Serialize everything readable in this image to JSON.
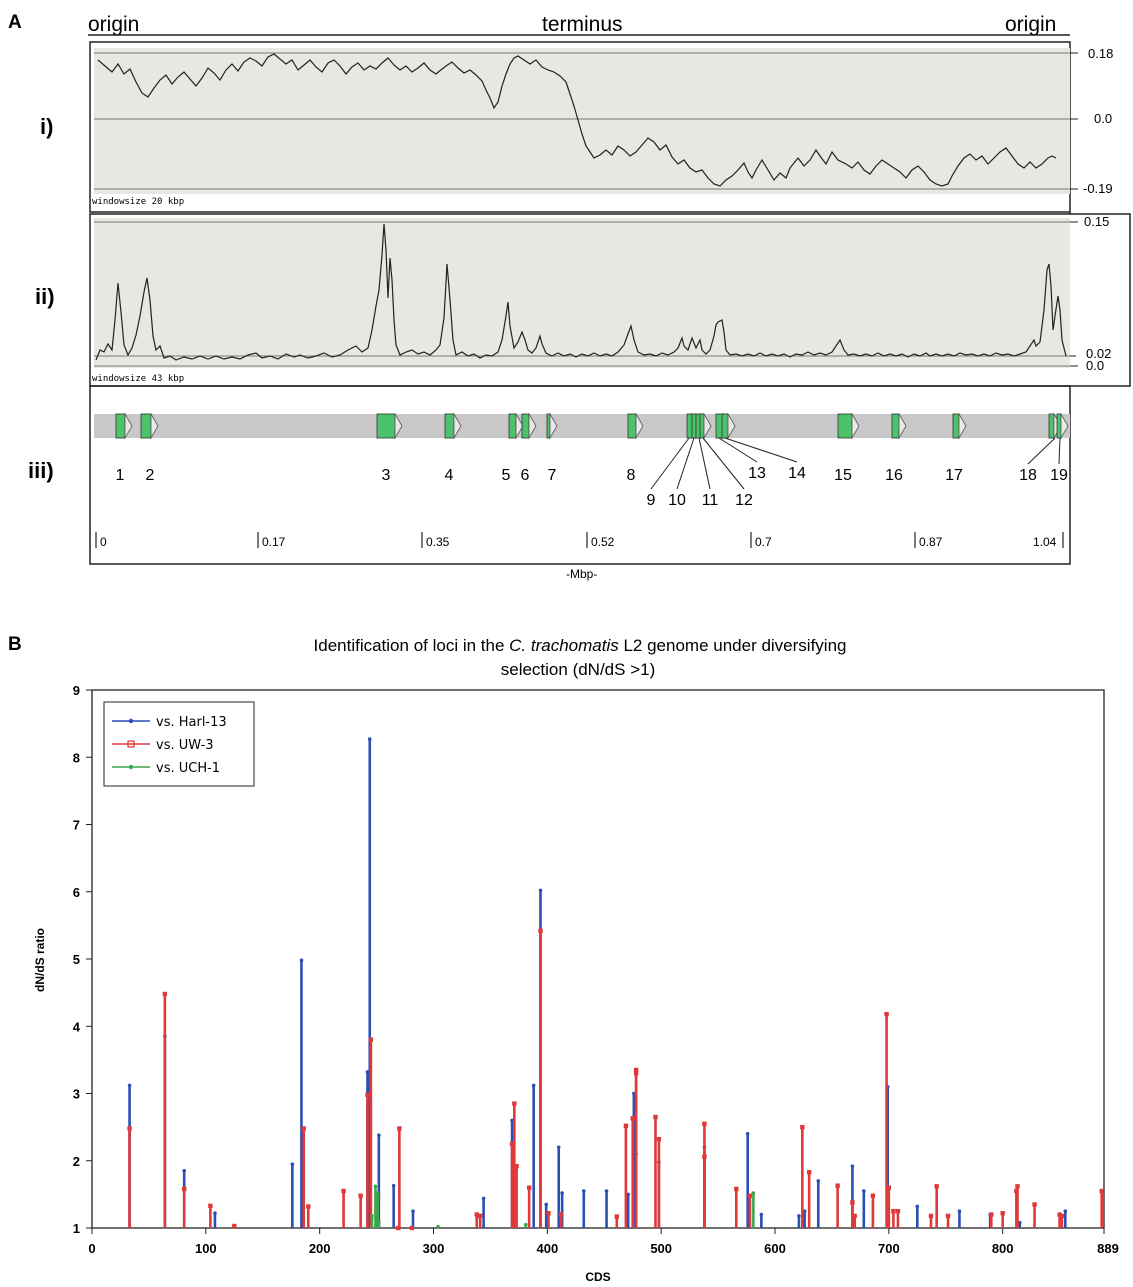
{
  "panel_a": {
    "letter": "A",
    "header": {
      "left": "origin",
      "center": "terminus",
      "right": "origin"
    },
    "row_labels": {
      "i": "i)",
      "ii": "ii)",
      "iii": "iii)"
    },
    "track_i": {
      "ticks": [
        "0.18",
        "0.0",
        "-0.19"
      ],
      "window_label": "windowsize 20 kbp"
    },
    "track_ii": {
      "ticks": [
        "0.15",
        "0.02",
        "0.0"
      ],
      "window_label": "windowsize 43 kbp"
    },
    "loci": [
      "1",
      "2",
      "3",
      "4",
      "5",
      "6",
      "7",
      "8",
      "9",
      "10",
      "11",
      "12",
      "13",
      "14",
      "15",
      "16",
      "17",
      "18",
      "19"
    ],
    "mbp_ticks": [
      "0",
      "0.17",
      "0.35",
      "0.52",
      "0.7",
      "0.87",
      "1.04"
    ],
    "mbp_label": "-Mbp-"
  },
  "panel_b": {
    "letter": "B",
    "title_line1_before": "Identification of loci in the ",
    "title_line1_italic": "C. trachomatis",
    "title_line1_after": " L2 genome under diversifying",
    "title_line2": "selection (dN/dS >1)"
  },
  "colors": {
    "hark13": "#2a4fb5",
    "uw3": "#e0393a",
    "uch1": "#3aa64a",
    "gene": "#4cc26a",
    "track_bg": "#e6e8e2"
  },
  "chart_data": {
    "type": "line",
    "xlabel": "CDS",
    "ylabel": "dN/dS ratio",
    "xlim": [
      0,
      889
    ],
    "ylim": [
      1,
      9
    ],
    "x_ticks": [
      "0",
      "100",
      "200",
      "300",
      "400",
      "500",
      "600",
      "700",
      "800",
      "889"
    ],
    "y_ticks": [
      "1",
      "2",
      "3",
      "4",
      "5",
      "6",
      "7",
      "8",
      "9"
    ],
    "legend_position": "top-left",
    "series": [
      {
        "name": "vs. Harl-13",
        "color": "#2a4fb5",
        "points": [
          [
            33,
            3.12
          ],
          [
            64,
            3.85
          ],
          [
            81,
            1.85
          ],
          [
            108,
            1.22
          ],
          [
            176,
            1.95
          ],
          [
            184,
            4.98
          ],
          [
            242,
            3.32
          ],
          [
            244,
            8.27
          ],
          [
            252,
            2.38
          ],
          [
            265,
            1.63
          ],
          [
            282,
            1.25
          ],
          [
            344,
            1.44
          ],
          [
            369,
            2.6
          ],
          [
            388,
            3.12
          ],
          [
            394,
            6.02
          ],
          [
            399,
            1.35
          ],
          [
            410,
            2.2
          ],
          [
            413,
            1.52
          ],
          [
            432,
            1.55
          ],
          [
            452,
            1.55
          ],
          [
            471,
            1.5
          ],
          [
            476,
            3.0
          ],
          [
            478,
            2.1
          ],
          [
            498,
            1.98
          ],
          [
            538,
            2.2
          ],
          [
            576,
            2.4
          ],
          [
            588,
            1.2
          ],
          [
            621,
            1.18
          ],
          [
            626,
            1.25
          ],
          [
            638,
            1.7
          ],
          [
            668,
            1.92
          ],
          [
            678,
            1.55
          ],
          [
            699,
            3.1
          ],
          [
            725,
            1.32
          ],
          [
            762,
            1.25
          ],
          [
            789,
            1.2
          ],
          [
            815,
            1.08
          ],
          [
            855,
            1.25
          ]
        ]
      },
      {
        "name": "vs. UW-3",
        "color": "#e0393a",
        "points": [
          [
            33,
            2.48
          ],
          [
            64,
            4.48
          ],
          [
            81,
            1.58
          ],
          [
            104,
            1.33
          ],
          [
            125,
            1.03
          ],
          [
            186,
            2.48
          ],
          [
            190,
            1.32
          ],
          [
            221,
            1.55
          ],
          [
            236,
            1.48
          ],
          [
            242,
            2.98
          ],
          [
            245,
            3.8
          ],
          [
            270,
            2.48
          ],
          [
            269,
            1.0
          ],
          [
            281,
            1.0
          ],
          [
            338,
            1.2
          ],
          [
            341,
            1.18
          ],
          [
            369,
            2.25
          ],
          [
            371,
            2.85
          ],
          [
            373,
            1.92
          ],
          [
            384,
            1.6
          ],
          [
            394,
            5.42
          ],
          [
            401,
            1.22
          ],
          [
            412,
            1.2
          ],
          [
            461,
            1.17
          ],
          [
            469,
            2.52
          ],
          [
            475,
            2.63
          ],
          [
            478,
            3.35
          ],
          [
            478,
            3.3
          ],
          [
            495,
            2.65
          ],
          [
            498,
            2.32
          ],
          [
            538,
            2.55
          ],
          [
            538,
            2.06
          ],
          [
            566,
            1.58
          ],
          [
            578,
            1.48
          ],
          [
            624,
            2.5
          ],
          [
            630,
            1.83
          ],
          [
            655,
            1.63
          ],
          [
            668,
            1.38
          ],
          [
            670,
            1.18
          ],
          [
            686,
            1.48
          ],
          [
            698,
            4.18
          ],
          [
            700,
            1.6
          ],
          [
            704,
            1.25
          ],
          [
            708,
            1.25
          ],
          [
            737,
            1.18
          ],
          [
            742,
            1.62
          ],
          [
            752,
            1.18
          ],
          [
            790,
            1.2
          ],
          [
            800,
            1.22
          ],
          [
            813,
            1.62
          ],
          [
            812,
            1.55
          ],
          [
            828,
            1.35
          ],
          [
            850,
            1.2
          ],
          [
            852,
            1.18
          ],
          [
            887,
            1.55
          ]
        ]
      },
      {
        "name": "vs. UCH-1",
        "color": "#3aa64a",
        "points": [
          [
            246,
            1.18
          ],
          [
            249,
            1.62
          ],
          [
            251,
            1.52
          ],
          [
            252,
            1.1
          ],
          [
            304,
            1.02
          ],
          [
            381,
            1.05
          ],
          [
            581,
            1.52
          ]
        ]
      }
    ]
  }
}
